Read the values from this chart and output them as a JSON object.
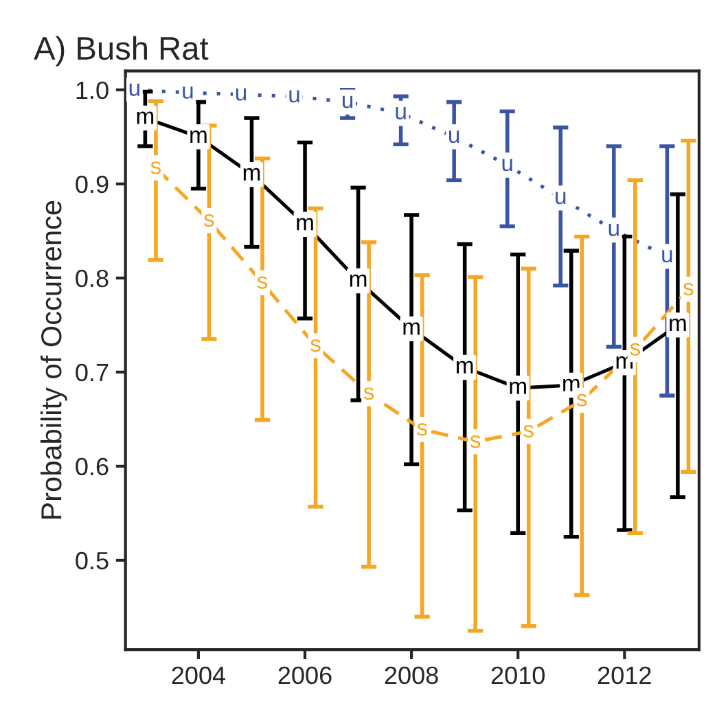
{
  "chart_data": {
    "type": "line",
    "title": "A) Bush Rat",
    "ylabel": "Probability of Occurrence",
    "xlim": [
      2002.63,
      2013.4
    ],
    "xticks": [
      2004,
      2006,
      2008,
      2010,
      2012
    ],
    "ylim": [
      0.405,
      1.02
    ],
    "yticks": [
      0.5,
      0.6,
      0.7,
      0.8,
      0.9,
      {
        "value": 1.0,
        "label": "1.0"
      }
    ],
    "grid": false,
    "legend": false,
    "series": [
      {
        "name": "u",
        "color": "#3a55a4",
        "marker": "square",
        "line_style": "dotted",
        "x": [
          2002.8,
          2003.8,
          2004.8,
          2005.8,
          2006.8,
          2007.8,
          2008.8,
          2009.8,
          2010.8,
          2011.8,
          2012.8
        ],
        "values": [
          1.0,
          0.997,
          0.995,
          0.993,
          0.987,
          0.975,
          0.95,
          0.92,
          0.885,
          0.851,
          0.823
        ],
        "errors": [
          null,
          null,
          null,
          null,
          [
            0.97,
            1.0
          ],
          [
            0.942,
            0.993
          ],
          [
            0.904,
            0.987
          ],
          [
            0.855,
            0.977
          ],
          [
            0.792,
            0.96
          ],
          [
            0.727,
            0.94
          ],
          [
            0.675,
            0.94
          ]
        ]
      },
      {
        "name": "m",
        "color": "#000000",
        "marker": "square",
        "line_style": "solid",
        "x": [
          2003,
          2004,
          2005,
          2006,
          2007,
          2008,
          2009,
          2010,
          2011,
          2012,
          2013
        ],
        "values": [
          0.97,
          0.95,
          0.91,
          0.857,
          0.797,
          0.746,
          0.705,
          0.683,
          0.686,
          0.71,
          0.75
        ],
        "errors": [
          [
            0.94,
            0.998
          ],
          [
            0.895,
            0.987
          ],
          [
            0.833,
            0.97
          ],
          [
            0.757,
            0.944
          ],
          [
            0.67,
            0.896
          ],
          [
            0.602,
            0.867
          ],
          [
            0.553,
            0.836
          ],
          [
            0.529,
            0.825
          ],
          [
            0.525,
            0.829
          ],
          [
            0.532,
            0.844
          ],
          [
            0.567,
            0.889
          ]
        ]
      },
      {
        "name": "s",
        "color": "#f5a623",
        "marker": "square",
        "line_style": "dashed",
        "x": [
          2003.2,
          2004.2,
          2005.2,
          2006.2,
          2007.2,
          2008.2,
          2009.2,
          2010.2,
          2011.2,
          2012.2,
          2013.2
        ],
        "values": [
          0.917,
          0.861,
          0.795,
          0.728,
          0.677,
          0.639,
          0.626,
          0.637,
          0.67,
          0.724,
          0.788
        ],
        "errors": [
          [
            0.819,
            0.988
          ],
          [
            0.735,
            0.962
          ],
          [
            0.649,
            0.927
          ],
          [
            0.557,
            0.874
          ],
          [
            0.493,
            0.838
          ],
          [
            0.44,
            0.803
          ],
          [
            0.425,
            0.801
          ],
          [
            0.43,
            0.81
          ],
          [
            0.463,
            0.844
          ],
          [
            0.529,
            0.904
          ],
          [
            0.594,
            0.946
          ]
        ]
      }
    ]
  }
}
